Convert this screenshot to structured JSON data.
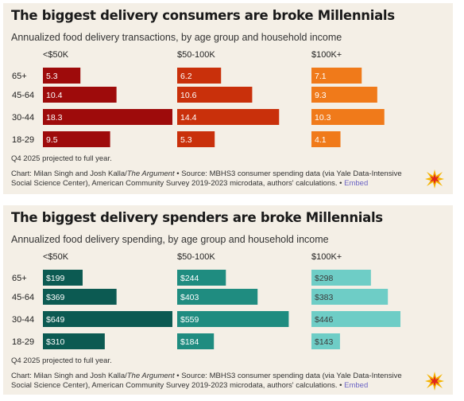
{
  "chart_data": [
    {
      "type": "bar",
      "title": "The biggest delivery consumers are broke Millennials",
      "subtitle": "Annualized food delivery transactions, by age group and household income",
      "categories": [
        "65+",
        "45-64",
        "30-44",
        "18-29"
      ],
      "series": [
        {
          "name": "<$50K",
          "values": [
            5.3,
            10.4,
            18.3,
            9.5
          ],
          "labels": [
            "5.3",
            "10.4",
            "18.3",
            "9.5"
          ]
        },
        {
          "name": "$50-100K",
          "values": [
            6.2,
            10.6,
            14.4,
            5.3
          ],
          "labels": [
            "6.2",
            "10.6",
            "14.4",
            "5.3"
          ]
        },
        {
          "name": "$100K+",
          "values": [
            7.1,
            9.3,
            10.3,
            4.1
          ],
          "labels": [
            "7.1",
            "9.3",
            "10.3",
            "4.1"
          ]
        }
      ],
      "colors": [
        "#9e0b0b",
        "#c9300b",
        "#f07a1a"
      ],
      "label_colors": [
        "#ffffff",
        "#ffffff",
        "#ffffff"
      ],
      "max": 18.3
    },
    {
      "type": "bar",
      "title": "The biggest delivery spenders are broke Millennials",
      "subtitle": "Annualized food delivery spending, by age group and household income",
      "categories": [
        "65+",
        "45-64",
        "30-44",
        "18-29"
      ],
      "series": [
        {
          "name": "<$50K",
          "values": [
            199,
            369,
            649,
            310
          ],
          "labels": [
            "$199",
            "$369",
            "$649",
            "$310"
          ]
        },
        {
          "name": "$50-100K",
          "values": [
            244,
            403,
            559,
            184
          ],
          "labels": [
            "$244",
            "$403",
            "$559",
            "$184"
          ]
        },
        {
          "name": "$100K+",
          "values": [
            298,
            383,
            446,
            143
          ],
          "labels": [
            "$298",
            "$383",
            "$446",
            "$143"
          ]
        }
      ],
      "colors": [
        "#0c5a52",
        "#1f8c80",
        "#6ecdc6"
      ],
      "label_colors": [
        "#ffffff",
        "#ffffff",
        "#3b3b3b"
      ],
      "max": 649
    }
  ],
  "notes": {
    "projection": "Q4 2025 projected to full year.",
    "source_prefix": "Chart: Milan Singh and Josh Kalla/",
    "source_publication": "The Argument",
    "source_rest": " • Source: MBHS3 consumer spending data (via Yale Data-Intensive Social Science Center), American Community Survey 2019-2023 microdata, authors' calculations. • ",
    "embed": "Embed"
  }
}
